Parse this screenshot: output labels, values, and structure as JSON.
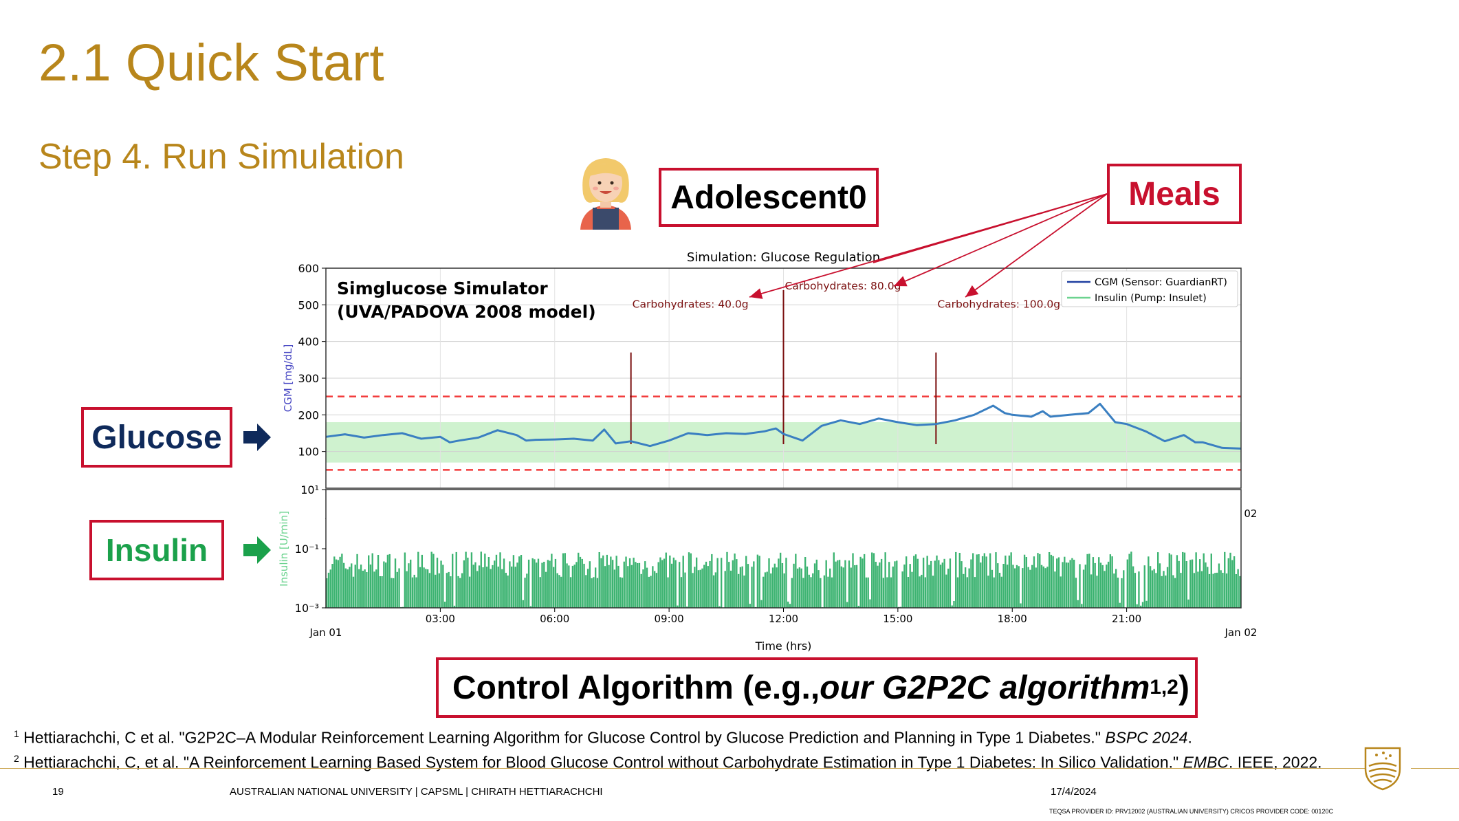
{
  "slide": {
    "title": "2.1 Quick Start",
    "subtitle": "Step 4. Run Simulation"
  },
  "callouts": {
    "adolescent": "Adolescent0",
    "meals": "Meals",
    "glucose": "Glucose",
    "insulin": "Insulin",
    "algo_prefix": "Control Algorithm (e.g., ",
    "algo_italic": "our G2P2C algorithm",
    "algo_sup": "1,2",
    "algo_suffix": ")"
  },
  "references": [
    {
      "num": "1",
      "text": " Hettiarachchi, C et al. \"G2P2C–A Modular Reinforcement Learning Algorithm for Glucose Control by Glucose Prediction and Planning in Type 1 Diabetes.\" ",
      "venue": "BSPC 2024",
      "after": "."
    },
    {
      "num": "2",
      "text": " Hettiarachchi, C, et al. \"A Reinforcement Learning Based System for Blood Glucose Control without Carbohydrate Estimation in Type 1 Diabetes: In Silico Validation.\"  ",
      "venue": "EMBC",
      "after": ". IEEE, 2022."
    }
  ],
  "footer": {
    "page": "19",
    "org": "AUSTRALIAN NATIONAL UNIVERSITY |   CAPSML   |  CHIRATH HETTIARACHCHI",
    "date": "17/4/2024",
    "provider": "TEQSA PROVIDER ID: PRV12002 (AUSTRALIAN UNIVERSITY) CRICOS PROVIDER CODE: 00120C"
  },
  "colors": {
    "gold": "#B8861B",
    "red": "#C8102E",
    "navy": "#0F2A5B",
    "green": "#1BA14B",
    "cgm_line": "#3A7FC1",
    "target_band": "#CFF2CF",
    "insulin_bars": "#3CB371",
    "meal_line": "#7A0F0F"
  },
  "chart_data": [
    {
      "type": "line",
      "title": "Simulation: Glucose Regulation",
      "annotation_title": "Simglucose Simulator",
      "annotation_sub": "(UVA/PADOVA 2008 model)",
      "ylabel": "CGM [mg/dL]",
      "ylim": [
        0,
        600
      ],
      "yticks": [
        100,
        200,
        300,
        400,
        500,
        600
      ],
      "xlim": [
        0,
        24
      ],
      "xticks": [
        3,
        6,
        9,
        12,
        15,
        18,
        21
      ],
      "xtick_labels": [
        "03:00",
        "06:00",
        "09:00",
        "12:00",
        "15:00",
        "18:00",
        "21:00"
      ],
      "x_start_label": "Jan 01",
      "x_end_label": "Jan 02",
      "target_range": [
        70,
        180
      ],
      "threshold_lines": [
        50,
        250
      ],
      "grid": true,
      "legend_position": "top-right",
      "legend": [
        "CGM (Sensor: GuardianRT)",
        "Insulin (Pump: Insulet)"
      ],
      "meals": [
        {
          "x": 8.0,
          "label": "Carbohydrates: 40.0g"
        },
        {
          "x": 12.0,
          "label": "Carbohydrates: 80.0g"
        },
        {
          "x": 16.0,
          "label": "Carbohydrates: 100.0g"
        }
      ],
      "series": [
        {
          "name": "CGM (Sensor: GuardianRT)",
          "x": [
            0,
            0.5,
            1,
            1.5,
            2,
            2.5,
            3,
            3.25,
            3.5,
            4,
            4.5,
            5,
            5.25,
            5.5,
            6,
            6.5,
            7,
            7.3,
            7.6,
            8,
            8.5,
            9,
            9.5,
            10,
            10.5,
            11,
            11.5,
            11.8,
            12,
            12.5,
            13,
            13.5,
            14,
            14.5,
            15,
            15.5,
            16,
            16.5,
            17,
            17.5,
            17.8,
            18,
            18.5,
            18.8,
            19,
            19.5,
            20,
            20.3,
            20.7,
            21,
            21.5,
            22,
            22.5,
            22.8,
            23,
            23.5,
            24
          ],
          "y": [
            140,
            147,
            138,
            145,
            150,
            135,
            140,
            125,
            130,
            138,
            158,
            145,
            130,
            132,
            133,
            135,
            130,
            160,
            122,
            128,
            115,
            130,
            150,
            145,
            150,
            148,
            155,
            163,
            148,
            130,
            170,
            185,
            175,
            190,
            180,
            172,
            175,
            185,
            200,
            225,
            205,
            200,
            195,
            210,
            195,
            200,
            205,
            230,
            180,
            175,
            155,
            128,
            145,
            125,
            125,
            110,
            108
          ]
        }
      ]
    },
    {
      "type": "bar",
      "ylabel": "Insulin [U/min]",
      "yscale": "log",
      "yticks": [
        0.001,
        0.1,
        10
      ],
      "ytick_labels": [
        "10⁻³",
        "10⁻¹",
        "10¹"
      ],
      "xlim": [
        0,
        24
      ],
      "xtick_labels": [
        "03:00",
        "06:00",
        "09:00",
        "12:00",
        "15:00",
        "18:00",
        "21:00"
      ],
      "x_start_label": "Jan 01",
      "x_end_label": "Jan 02",
      "xlabel": "Time (hrs)",
      "bar_count": 480,
      "value_range_log10": [
        -2.3,
        -1.0
      ],
      "typical_value": 0.03
    }
  ]
}
